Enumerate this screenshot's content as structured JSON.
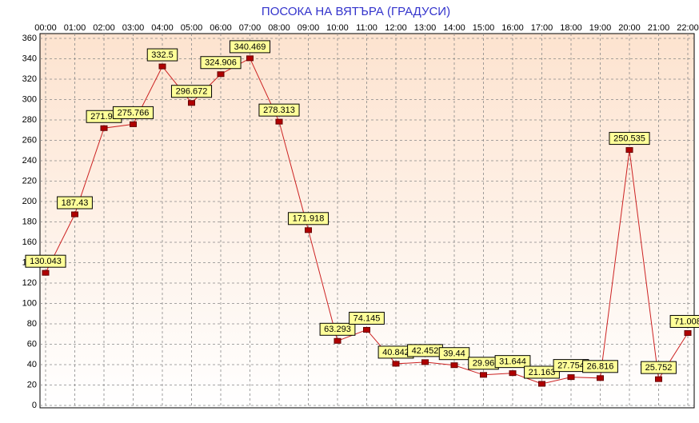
{
  "chart_data": {
    "type": "line",
    "title": "ПОСОКА НА ВЯТЪРА    (ГРАДУСИ)",
    "categories": [
      "00:00",
      "01:00",
      "02:00",
      "03:00",
      "04:00",
      "05:00",
      "06:00",
      "07:00",
      "08:00",
      "09:00",
      "10:00",
      "11:00",
      "12:00",
      "13:00",
      "14:00",
      "15:00",
      "16:00",
      "17:00",
      "18:00",
      "19:00",
      "20:00",
      "21:00",
      "22:00"
    ],
    "values": [
      130.043,
      187.43,
      271.95,
      275.766,
      332.5,
      296.672,
      324.906,
      340.469,
      278.313,
      171.918,
      63.293,
      74.145,
      40.842,
      42.452,
      39.44,
      29.96,
      31.644,
      21.163,
      27.754,
      26.816,
      250.535,
      25.752,
      71.008
    ],
    "color": "#cc2222",
    "ylim": [
      0,
      360
    ],
    "yticks": [
      0,
      20,
      40,
      60,
      80,
      100,
      120,
      140,
      160,
      180,
      200,
      220,
      240,
      260,
      280,
      300,
      320,
      340,
      360
    ],
    "grid": true
  }
}
